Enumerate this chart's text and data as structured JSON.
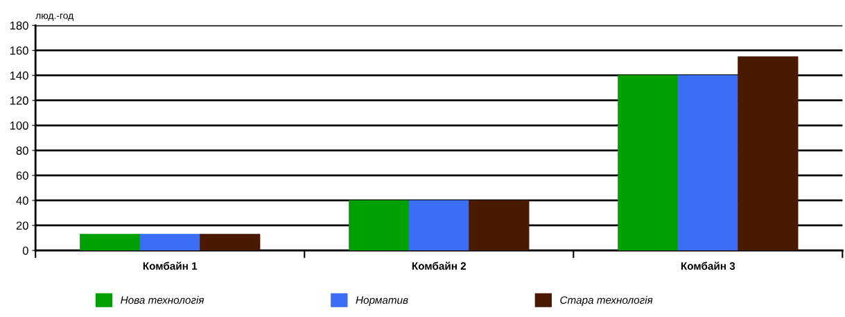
{
  "chart_data": {
    "type": "bar",
    "ylabel": "люд.-год",
    "categories": [
      "Комбайн 1",
      "Комбайн 2",
      "Комбайн 3"
    ],
    "series": [
      {
        "name": "Нова технологія",
        "color": "#00a000",
        "values": [
          13,
          40,
          140
        ]
      },
      {
        "name": "Норматив",
        "color": "#3b6ef5",
        "values": [
          13,
          40,
          140
        ]
      },
      {
        "name": "Стара технологія",
        "color": "#4a1a00",
        "values": [
          13,
          40,
          155
        ]
      }
    ],
    "ylim": [
      0,
      180
    ],
    "yticks": [
      0,
      20,
      40,
      60,
      80,
      100,
      120,
      140,
      160,
      180
    ],
    "grid": "y",
    "legend": "bottom"
  }
}
